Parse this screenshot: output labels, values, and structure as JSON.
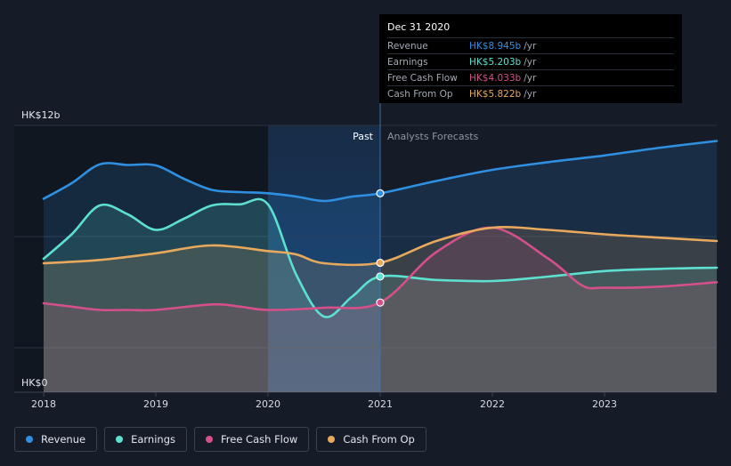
{
  "chart_data": {
    "type": "area",
    "x_ticks": [
      "2018",
      "2019",
      "2020",
      "2021",
      "2022",
      "2023"
    ],
    "y_labels": [
      "HK$12b",
      "HK$0"
    ],
    "ylim": [
      0,
      12
    ],
    "region_labels": {
      "past": "Past",
      "forecast": "Analysts Forecasts"
    },
    "series": [
      {
        "name": "Revenue",
        "color": "#2f8fe0",
        "points": [
          [
            2018.0,
            8.7
          ],
          [
            2018.25,
            9.4
          ],
          [
            2018.5,
            10.25
          ],
          [
            2018.75,
            10.22
          ],
          [
            2019.0,
            10.2
          ],
          [
            2019.25,
            9.6
          ],
          [
            2019.5,
            9.1
          ],
          [
            2019.75,
            9.0
          ],
          [
            2020.0,
            8.95
          ],
          [
            2020.25,
            8.8
          ],
          [
            2020.5,
            8.6
          ],
          [
            2020.75,
            8.8
          ],
          [
            2021.0,
            8.945
          ],
          [
            2021.5,
            9.5
          ],
          [
            2022.0,
            10.0
          ],
          [
            2022.5,
            10.35
          ],
          [
            2023.0,
            10.65
          ],
          [
            2023.5,
            11.0
          ],
          [
            2024.0,
            11.3
          ]
        ]
      },
      {
        "name": "Earnings",
        "color": "#5de0d0",
        "points": [
          [
            2018.0,
            6.0
          ],
          [
            2018.25,
            7.1
          ],
          [
            2018.5,
            8.4
          ],
          [
            2018.75,
            8.0
          ],
          [
            2019.0,
            7.3
          ],
          [
            2019.25,
            7.8
          ],
          [
            2019.5,
            8.4
          ],
          [
            2019.75,
            8.45
          ],
          [
            2020.0,
            8.45
          ],
          [
            2020.25,
            5.3
          ],
          [
            2020.5,
            3.4
          ],
          [
            2020.75,
            4.3
          ],
          [
            2021.0,
            5.203
          ],
          [
            2021.5,
            5.05
          ],
          [
            2022.0,
            5.0
          ],
          [
            2022.5,
            5.2
          ],
          [
            2023.0,
            5.45
          ],
          [
            2023.5,
            5.55
          ],
          [
            2024.0,
            5.6
          ]
        ]
      },
      {
        "name": "Free Cash Flow",
        "color": "#d4508a",
        "points": [
          [
            2018.0,
            4.0
          ],
          [
            2018.25,
            3.85
          ],
          [
            2018.5,
            3.7
          ],
          [
            2018.75,
            3.7
          ],
          [
            2019.0,
            3.7
          ],
          [
            2019.5,
            3.95
          ],
          [
            2019.75,
            3.85
          ],
          [
            2020.0,
            3.7
          ],
          [
            2020.5,
            3.8
          ],
          [
            2021.0,
            4.033
          ],
          [
            2021.5,
            6.3
          ],
          [
            2022.0,
            7.4
          ],
          [
            2022.5,
            6.0
          ],
          [
            2022.8,
            4.8
          ],
          [
            2023.0,
            4.7
          ],
          [
            2023.5,
            4.75
          ],
          [
            2024.0,
            4.95
          ]
        ]
      },
      {
        "name": "Cash From Op",
        "color": "#e8a95c",
        "points": [
          [
            2018.0,
            5.8
          ],
          [
            2018.5,
            5.95
          ],
          [
            2019.0,
            6.25
          ],
          [
            2019.5,
            6.6
          ],
          [
            2020.0,
            6.35
          ],
          [
            2020.25,
            6.2
          ],
          [
            2020.5,
            5.8
          ],
          [
            2021.0,
            5.822
          ],
          [
            2021.5,
            6.8
          ],
          [
            2022.0,
            7.4
          ],
          [
            2022.5,
            7.3
          ],
          [
            2023.0,
            7.1
          ],
          [
            2023.5,
            6.95
          ],
          [
            2024.0,
            6.8
          ]
        ]
      }
    ],
    "tooltip": {
      "date": "Dec 31 2020",
      "unit": "/yr",
      "rows": [
        {
          "name": "Revenue",
          "value": "HK$8.945b",
          "color": "#2f8fe0"
        },
        {
          "name": "Earnings",
          "value": "HK$5.203b",
          "color": "#5de0d0"
        },
        {
          "name": "Free Cash Flow",
          "value": "HK$4.033b",
          "color": "#d4508a"
        },
        {
          "name": "Cash From Op",
          "value": "HK$5.822b",
          "color": "#e8a95c"
        }
      ]
    },
    "legend": [
      {
        "name": "Revenue",
        "color": "#2f8fe0"
      },
      {
        "name": "Earnings",
        "color": "#5de0d0"
      },
      {
        "name": "Free Cash Flow",
        "color": "#d4508a"
      },
      {
        "name": "Cash From Op",
        "color": "#e8a95c"
      }
    ],
    "past_end": 2021.0,
    "highlight_range": [
      2020.0,
      2021.0
    ]
  }
}
